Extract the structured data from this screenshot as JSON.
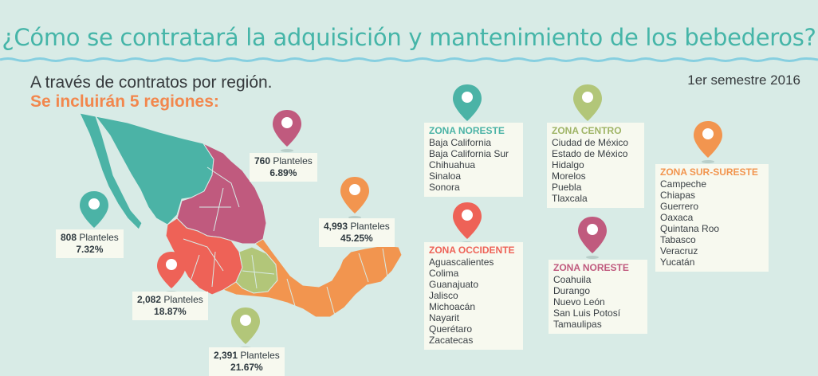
{
  "title": "¿Cómo se contratará la adquisición y mantenimiento de los bebederos?",
  "subtitle": "A través de contratos por región.",
  "subtitle2": "Se incluirán 5 regiones:",
  "period": "1er semestre 2016",
  "colors": {
    "teal": "#4bb3a6",
    "magenta": "#c05a7e",
    "red": "#ee6257",
    "lime": "#b2c679",
    "orange": "#f2954f",
    "background": "#d8ebe6"
  },
  "stats": [
    {
      "number": "808",
      "unit": "Planteles",
      "percent": "7.32%"
    },
    {
      "number": "760",
      "unit": "Planteles",
      "percent": "6.89%"
    },
    {
      "number": "4,993",
      "unit": "Planteles",
      "percent": "45.25%"
    },
    {
      "number": "2,082",
      "unit": "Planteles",
      "percent": "18.87%"
    },
    {
      "number": "2,391",
      "unit": "Planteles",
      "percent": "21.67%"
    }
  ],
  "zones": [
    {
      "title": "ZONA NORESTE",
      "states": [
        "Baja California",
        "Baja California Sur",
        "Chihuahua",
        "Sinaloa",
        "Sonora"
      ]
    },
    {
      "title": "ZONA CENTRO",
      "states": [
        "Ciudad de México",
        "Estado de México",
        "Hidalgo",
        "Morelos",
        "Puebla",
        "Tlaxcala"
      ]
    },
    {
      "title": "ZONA SUR-SURESTE",
      "states": [
        "Campeche",
        "Chiapas",
        "Guerrero",
        "Oaxaca",
        "Quintana Roo",
        "Tabasco",
        "Veracruz",
        "Yucatán"
      ]
    },
    {
      "title": "ZONA OCCIDENTE",
      "states": [
        "Aguascalientes",
        "Colima",
        "Guanajuato",
        "Jalisco",
        "Michoacán",
        "Nayarit",
        "Querétaro",
        "Zacatecas"
      ]
    },
    {
      "title": "ZONA NORESTE",
      "states": [
        "Coahuila",
        "Durango",
        "Nuevo León",
        "San Luis Potosí",
        "Tamaulipas"
      ]
    }
  ]
}
